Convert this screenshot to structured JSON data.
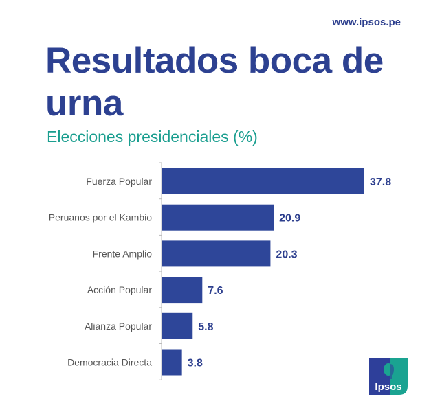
{
  "header": {
    "url": "www.ipsos.pe"
  },
  "title": "Resultados boca de urna",
  "subtitle": "Elecciones presidenciales (%)",
  "logo": {
    "text": "Ipsos",
    "colors": [
      "#2e3f9a",
      "#1aa391"
    ]
  },
  "chart_data": {
    "type": "bar",
    "orientation": "horizontal",
    "title": "Resultados boca de urna",
    "subtitle": "Elecciones presidenciales (%)",
    "categories": [
      "Fuerza Popular",
      "Peruanos por el Kambio",
      "Frente Amplio",
      "Acción Popular",
      "Alianza Popular",
      "Democracia Directa"
    ],
    "values": [
      37.8,
      20.9,
      20.3,
      7.6,
      5.8,
      3.8
    ],
    "data_labels": [
      "37.8",
      "20.9",
      "20.3",
      "7.6",
      "5.8",
      "3.8"
    ],
    "xlim": [
      0,
      40
    ],
    "grid": false,
    "bar_color": "#2e4699",
    "label_color": "#2d3f8e"
  }
}
